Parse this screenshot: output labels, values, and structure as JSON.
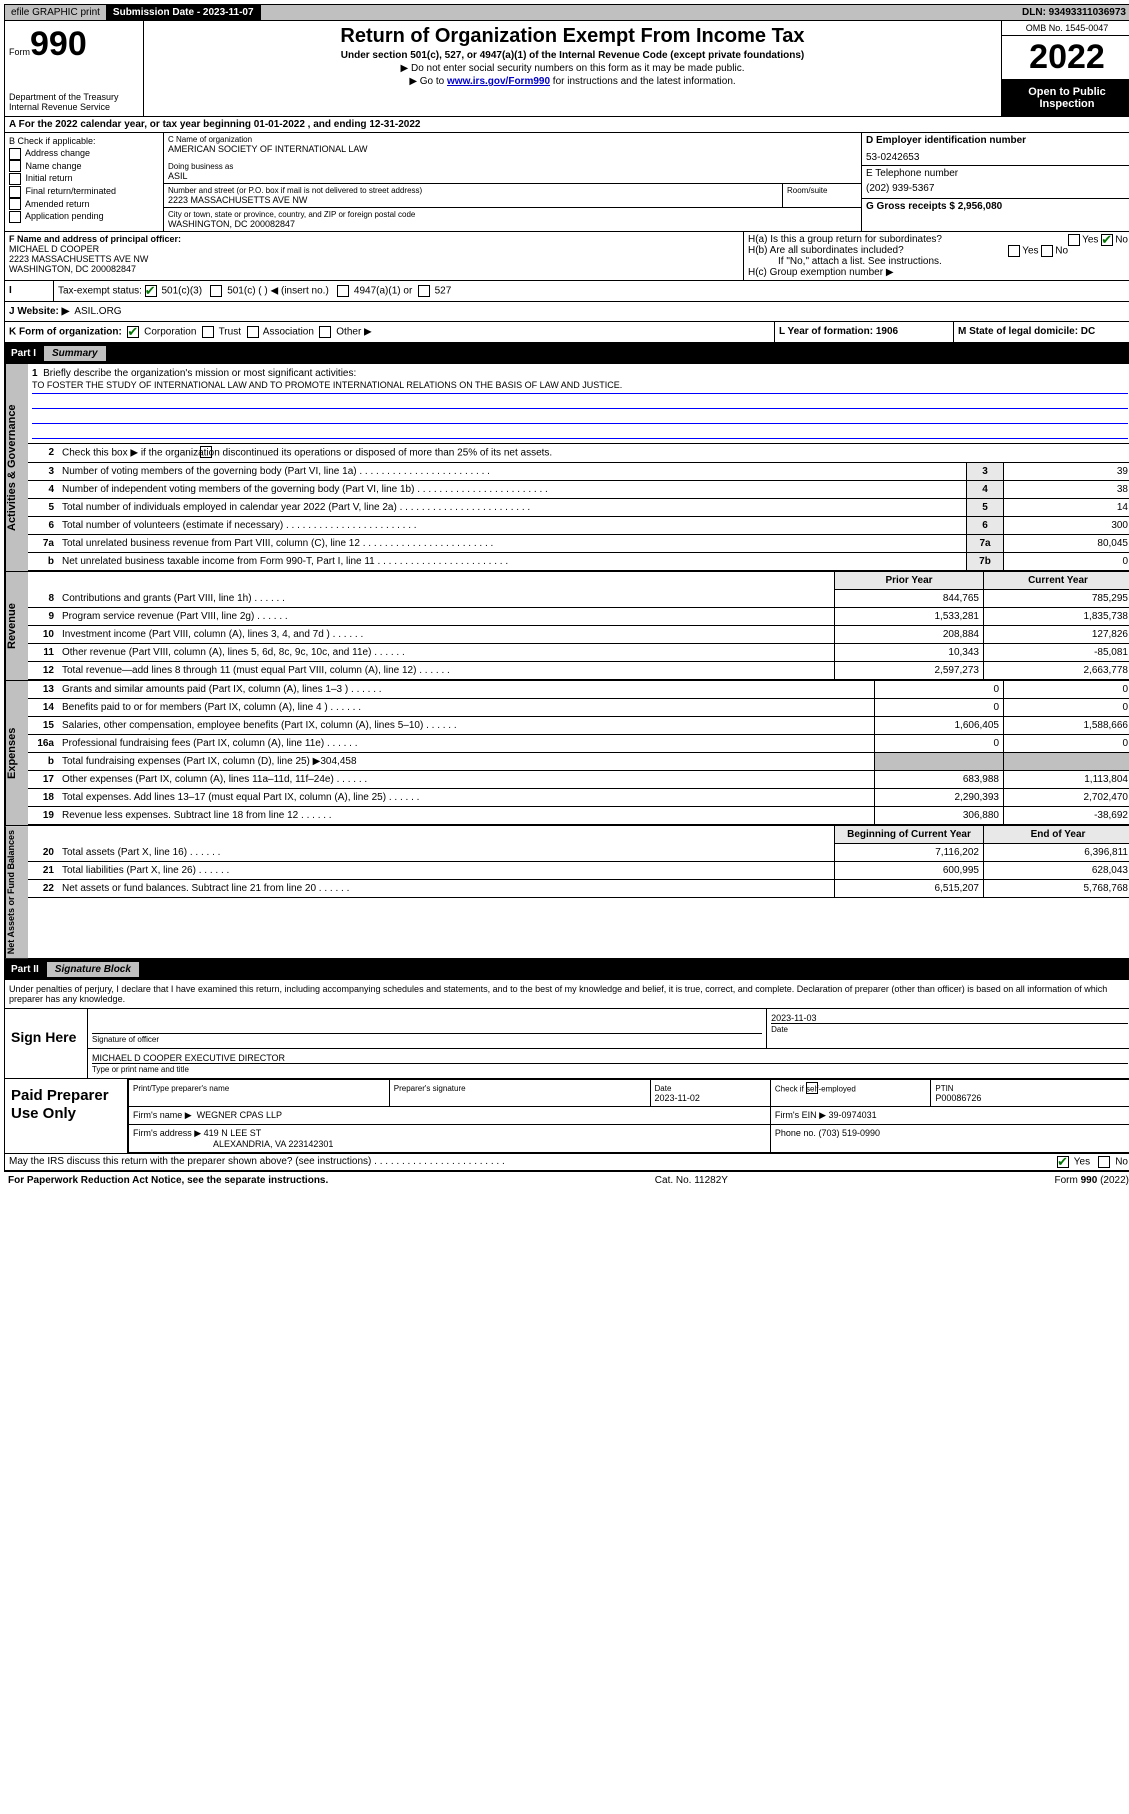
{
  "topbar": {
    "efile": "efile GRAPHIC print",
    "sub_label": "Submission Date - 2023-11-07",
    "dln": "DLN: 93493311036973"
  },
  "header": {
    "form_word": "Form",
    "form_num": "990",
    "dept": "Department of the Treasury",
    "irs": "Internal Revenue Service",
    "title": "Return of Organization Exempt From Income Tax",
    "sub1": "Under section 501(c), 527, or 4947(a)(1) of the Internal Revenue Code (except private foundations)",
    "sub2": "▶ Do not enter social security numbers on this form as it may be made public.",
    "sub3_pre": "▶ Go to ",
    "sub3_link": "www.irs.gov/Form990",
    "sub3_post": " for instructions and the latest information.",
    "omb": "OMB No. 1545-0047",
    "year": "2022",
    "open_pub": "Open to Public Inspection"
  },
  "row_a": "A For the 2022 calendar year, or tax year beginning 01-01-2022   , and ending 12-31-2022",
  "section_b": {
    "title": "B Check if applicable:",
    "items": [
      "Address change",
      "Name change",
      "Initial return",
      "Final return/terminated",
      "Amended return",
      "Application pending"
    ]
  },
  "section_c": {
    "lbl_name": "C Name of organization",
    "org_name": "AMERICAN SOCIETY OF INTERNATIONAL LAW",
    "lbl_dba": "Doing business as",
    "dba": "ASIL",
    "lbl_addr": "Number and street (or P.O. box if mail is not delivered to street address)",
    "lbl_room": "Room/suite",
    "addr": "2223 MASSACHUSETTS AVE NW",
    "lbl_city": "City or town, state or province, country, and ZIP or foreign postal code",
    "city": "WASHINGTON, DC  200082847"
  },
  "section_d": {
    "lbl_ein": "D Employer identification number",
    "ein": "53-0242653",
    "lbl_phone": "E Telephone number",
    "phone": "(202) 939-5367",
    "lbl_gross": "G Gross receipts $ 2,956,080"
  },
  "section_f": {
    "lbl": "F Name and address of principal officer:",
    "name": "MICHAEL D COOPER",
    "addr1": "2223 MASSACHUSETTS AVE NW",
    "addr2": "WASHINGTON, DC  200082847"
  },
  "section_h": {
    "ha": "H(a)  Is this a group return for subordinates?",
    "hb": "H(b)  Are all subordinates included?",
    "hb_note": "If \"No,\" attach a list. See instructions.",
    "hc": "H(c)  Group exemption number ▶",
    "yes": "Yes",
    "no": "No"
  },
  "row_i": {
    "lbl": "Tax-exempt status:",
    "o1": "501(c)(3)",
    "o2": "501(c) (  ) ◀ (insert no.)",
    "o3": "4947(a)(1) or",
    "o4": "527"
  },
  "row_j": {
    "lbl": "J   Website: ▶",
    "val": "ASIL.ORG"
  },
  "row_k": {
    "lbl": "K Form of organization:",
    "o1": "Corporation",
    "o2": "Trust",
    "o3": "Association",
    "o4": "Other ▶"
  },
  "row_l": {
    "lbl": "L Year of formation: 1906"
  },
  "row_m": {
    "lbl": "M State of legal domicile: DC"
  },
  "parts": {
    "p1_lbl": "Part I",
    "p1_title": "Summary",
    "p2_lbl": "Part II",
    "p2_title": "Signature Block"
  },
  "gov": {
    "vtab": "Activities & Governance",
    "l1": "Briefly describe the organization's mission or most significant activities:",
    "l1_text": "TO FOSTER THE STUDY OF INTERNATIONAL LAW AND TO PROMOTE INTERNATIONAL RELATIONS ON THE BASIS OF LAW AND JUSTICE.",
    "l2": "Check this box ▶        if the organization discontinued its operations or disposed of more than 25% of its net assets.",
    "rows": [
      {
        "n": "3",
        "d": "Number of voting members of the governing body (Part VI, line 1a)",
        "rn": "3",
        "v": "39"
      },
      {
        "n": "4",
        "d": "Number of independent voting members of the governing body (Part VI, line 1b)",
        "rn": "4",
        "v": "38"
      },
      {
        "n": "5",
        "d": "Total number of individuals employed in calendar year 2022 (Part V, line 2a)",
        "rn": "5",
        "v": "14"
      },
      {
        "n": "6",
        "d": "Total number of volunteers (estimate if necessary)",
        "rn": "6",
        "v": "300"
      },
      {
        "n": "7a",
        "d": "Total unrelated business revenue from Part VIII, column (C), line 12",
        "rn": "7a",
        "v": "80,045"
      },
      {
        "n": "b",
        "d": "Net unrelated business taxable income from Form 990-T, Part I, line 11",
        "rn": "7b",
        "v": "0"
      }
    ]
  },
  "rev": {
    "vtab": "Revenue",
    "hdr_prior": "Prior Year",
    "hdr_curr": "Current Year",
    "rows": [
      {
        "n": "8",
        "d": "Contributions and grants (Part VIII, line 1h)",
        "p": "844,765",
        "c": "785,295"
      },
      {
        "n": "9",
        "d": "Program service revenue (Part VIII, line 2g)",
        "p": "1,533,281",
        "c": "1,835,738"
      },
      {
        "n": "10",
        "d": "Investment income (Part VIII, column (A), lines 3, 4, and 7d )",
        "p": "208,884",
        "c": "127,826"
      },
      {
        "n": "11",
        "d": "Other revenue (Part VIII, column (A), lines 5, 6d, 8c, 9c, 10c, and 11e)",
        "p": "10,343",
        "c": "-85,081"
      },
      {
        "n": "12",
        "d": "Total revenue—add lines 8 through 11 (must equal Part VIII, column (A), line 12)",
        "p": "2,597,273",
        "c": "2,663,778"
      }
    ]
  },
  "exp": {
    "vtab": "Expenses",
    "rows": [
      {
        "n": "13",
        "d": "Grants and similar amounts paid (Part IX, column (A), lines 1–3 )",
        "p": "0",
        "c": "0"
      },
      {
        "n": "14",
        "d": "Benefits paid to or for members (Part IX, column (A), line 4 )",
        "p": "0",
        "c": "0"
      },
      {
        "n": "15",
        "d": "Salaries, other compensation, employee benefits (Part IX, column (A), lines 5–10)",
        "p": "1,606,405",
        "c": "1,588,666"
      },
      {
        "n": "16a",
        "d": "Professional fundraising fees (Part IX, column (A), line 11e)",
        "p": "0",
        "c": "0"
      },
      {
        "n": "b",
        "d": "Total fundraising expenses (Part IX, column (D), line 25) ▶304,458",
        "p": "",
        "c": "",
        "shade": true
      },
      {
        "n": "17",
        "d": "Other expenses (Part IX, column (A), lines 11a–11d, 11f–24e)",
        "p": "683,988",
        "c": "1,113,804"
      },
      {
        "n": "18",
        "d": "Total expenses. Add lines 13–17 (must equal Part IX, column (A), line 25)",
        "p": "2,290,393",
        "c": "2,702,470"
      },
      {
        "n": "19",
        "d": "Revenue less expenses. Subtract line 18 from line 12",
        "p": "306,880",
        "c": "-38,692"
      }
    ]
  },
  "net": {
    "vtab": "Net Assets or Fund Balances",
    "hdr_begin": "Beginning of Current Year",
    "hdr_end": "End of Year",
    "rows": [
      {
        "n": "20",
        "d": "Total assets (Part X, line 16)",
        "p": "7,116,202",
        "c": "6,396,811"
      },
      {
        "n": "21",
        "d": "Total liabilities (Part X, line 26)",
        "p": "600,995",
        "c": "628,043"
      },
      {
        "n": "22",
        "d": "Net assets or fund balances. Subtract line 21 from line 20",
        "p": "6,515,207",
        "c": "5,768,768"
      }
    ]
  },
  "declaration": "Under penalties of perjury, I declare that I have examined this return, including accompanying schedules and statements, and to the best of my knowledge and belief, it is true, correct, and complete. Declaration of preparer (other than officer) is based on all information of which preparer has any knowledge.",
  "sign": {
    "here": "Sign Here",
    "sig_of_officer": "Signature of officer",
    "date_lbl": "Date",
    "date": "2023-11-03",
    "name": "MICHAEL D COOPER  EXECUTIVE DIRECTOR",
    "name_lbl": "Type or print name and title"
  },
  "paid": {
    "title": "Paid Preparer Use Only",
    "hdr_prep": "Print/Type preparer's name",
    "hdr_sig": "Preparer's signature",
    "hdr_date": "Date",
    "date": "2023-11-02",
    "check_lbl": "Check         if self-employed",
    "ptin_lbl": "PTIN",
    "ptin": "P00086726",
    "firm_name_lbl": "Firm's name    ▶",
    "firm_name": "WEGNER CPAS LLP",
    "firm_ein_lbl": "Firm's EIN ▶",
    "firm_ein": "39-0974031",
    "firm_addr_lbl": "Firm's address ▶",
    "firm_addr1": "419 N LEE ST",
    "firm_addr2": "ALEXANDRIA, VA  223142301",
    "phone_lbl": "Phone no.",
    "phone": "(703) 519-0990"
  },
  "discuss": {
    "q": "May the IRS discuss this return with the preparer shown above? (see instructions)",
    "yes": "Yes",
    "no": "No"
  },
  "footer": {
    "left": "For Paperwork Reduction Act Notice, see the separate instructions.",
    "mid": "Cat. No. 11282Y",
    "right": "Form 990 (2022)"
  }
}
